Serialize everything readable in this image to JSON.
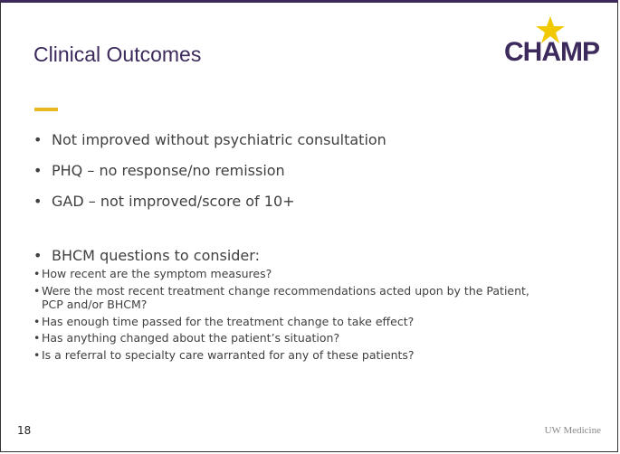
{
  "header": {
    "title": "Clinical Outcomes",
    "logo": "CHAMP"
  },
  "bullets": [
    {
      "text": "Not improved without psychiatric consultation"
    },
    {
      "text": "PHQ – no response/no remission"
    },
    {
      "text": "GAD – not improved/score of 10+"
    },
    {
      "text": "BHCM questions to consider:",
      "subitems": [
        "How recent are the symptom measures?",
        "Were the most recent treatment change recommendations acted upon by the Patient, PCP and/or BHCM?",
        "Has enough time passed for the treatment change to take effect?",
        "Has anything changed about the patient’s situation?",
        "Is a referral to specialty care warranted for any of these patients?"
      ]
    }
  ],
  "footer": {
    "page_number": "18",
    "brand": "UW Medicine"
  }
}
